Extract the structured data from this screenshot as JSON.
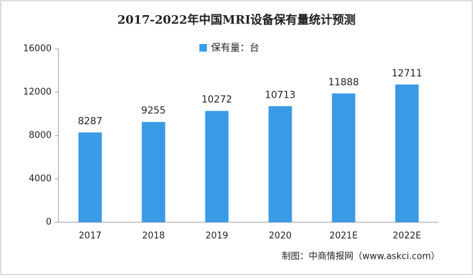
{
  "chart_data": {
    "type": "bar",
    "title": "2017-2022年中国MRI设备保有量统计预测",
    "legend": "保有量：台",
    "categories": [
      "2017",
      "2018",
      "2019",
      "2020",
      "2021E",
      "2022E"
    ],
    "values": [
      8287,
      9255,
      10272,
      10713,
      11888,
      12711
    ],
    "color": "#3a9ae6",
    "ylim": [
      0,
      16000
    ],
    "yticks": [
      0,
      4000,
      8000,
      12000,
      16000
    ],
    "grid": false,
    "source": "制图：中商情报网（www.askci.com）"
  }
}
